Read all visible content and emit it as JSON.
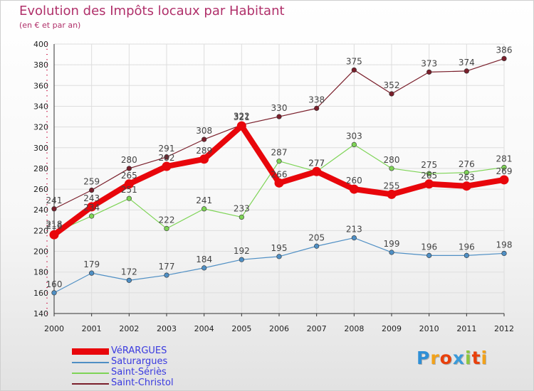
{
  "chart_data": {
    "type": "line",
    "title": "Evolution des Impôts locaux par Habitant",
    "subtitle": "(en € et par an)",
    "xlabel": "",
    "ylabel": "",
    "ylim": [
      140,
      400
    ],
    "y_ticks": [
      140,
      160,
      180,
      200,
      220,
      240,
      260,
      280,
      300,
      320,
      340,
      360,
      380,
      400
    ],
    "categories": [
      "2000",
      "2001",
      "2002",
      "2003",
      "2004",
      "2005",
      "2006",
      "2007",
      "2008",
      "2009",
      "2010",
      "2011",
      "2012"
    ],
    "grid": true,
    "legend_position": "bottom-left",
    "series": [
      {
        "name": "VéRARGUES",
        "color": "#e8060b",
        "values": [
          216,
          243,
          265,
          282,
          289,
          321,
          266,
          277,
          260,
          255,
          265,
          263,
          269
        ]
      },
      {
        "name": "Saturargues",
        "color": "#4f8fc4",
        "values": [
          160,
          179,
          172,
          177,
          184,
          192,
          195,
          205,
          213,
          199,
          196,
          196,
          198
        ]
      },
      {
        "name": "Saint-Sériès",
        "color": "#7ed456",
        "values": [
          218,
          234,
          251,
          222,
          241,
          233,
          287,
          277,
          303,
          280,
          275,
          276,
          281
        ]
      },
      {
        "name": "Saint-Christol",
        "color": "#7a1f2b",
        "values": [
          241,
          259,
          280,
          291,
          308,
          322,
          330,
          338,
          375,
          352,
          373,
          374,
          386
        ]
      }
    ]
  },
  "logo": {
    "letters": [
      "P",
      "r",
      "o",
      "x",
      "i",
      "t",
      "i"
    ],
    "colors": [
      "#2f8fd6",
      "#f2a21a",
      "#e8400c",
      "#3a9ad9",
      "#8cc63f",
      "#e8400c",
      "#f2a21a"
    ]
  }
}
